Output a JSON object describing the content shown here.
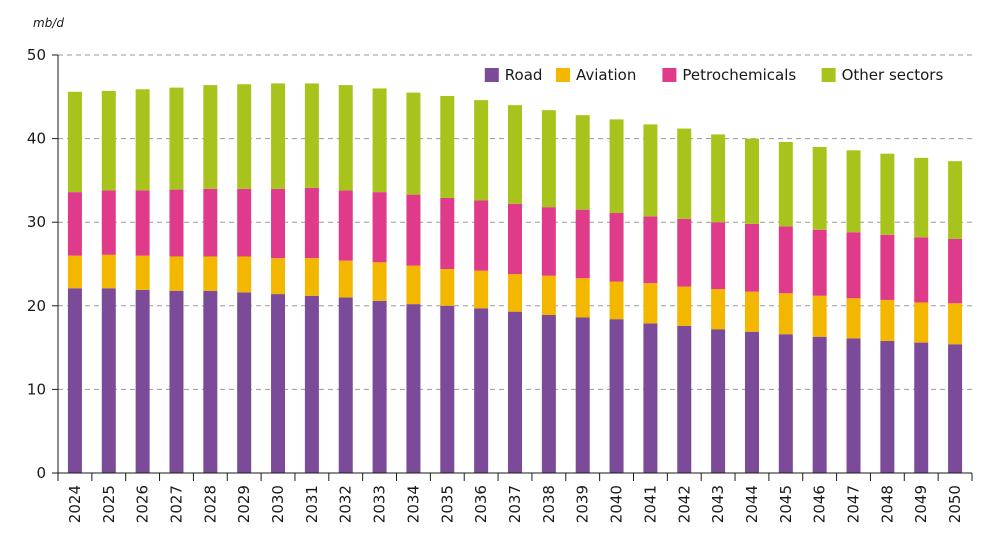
{
  "chart_data": {
    "type": "bar",
    "stacked": true,
    "unit_label": "mb/d",
    "title": "",
    "xlabel": "",
    "ylabel": "",
    "ylim": [
      0,
      50
    ],
    "yticks": [
      0,
      10,
      20,
      30,
      40,
      50
    ],
    "grid": "horizontal-dashed",
    "legend_position": "top-right",
    "categories": [
      "2024",
      "2025",
      "2026",
      "2027",
      "2028",
      "2029",
      "2030",
      "2031",
      "2032",
      "2033",
      "2034",
      "2035",
      "2036",
      "2037",
      "2038",
      "2039",
      "2040",
      "2041",
      "2042",
      "2043",
      "2044",
      "2045",
      "2046",
      "2047",
      "2048",
      "2049",
      "2050"
    ],
    "series": [
      {
        "name": "Road",
        "color": "#7b4a98",
        "values": [
          22.1,
          22.1,
          21.9,
          21.8,
          21.8,
          21.6,
          21.4,
          21.2,
          21.0,
          20.6,
          20.2,
          20.0,
          19.7,
          19.3,
          18.9,
          18.6,
          18.4,
          17.9,
          17.6,
          17.2,
          16.9,
          16.6,
          16.3,
          16.1,
          15.8,
          15.6,
          15.4
        ]
      },
      {
        "name": "Aviation",
        "color": "#f3b700",
        "values": [
          3.9,
          4.0,
          4.1,
          4.1,
          4.1,
          4.3,
          4.3,
          4.5,
          4.4,
          4.6,
          4.6,
          4.4,
          4.5,
          4.5,
          4.7,
          4.7,
          4.5,
          4.8,
          4.7,
          4.8,
          4.8,
          4.9,
          4.9,
          4.8,
          4.9,
          4.8,
          4.9
        ]
      },
      {
        "name": "Petrochemicals",
        "color": "#e03b8b",
        "values": [
          7.6,
          7.7,
          7.8,
          8.0,
          8.1,
          8.1,
          8.3,
          8.4,
          8.4,
          8.4,
          8.5,
          8.5,
          8.4,
          8.4,
          8.2,
          8.2,
          8.2,
          8.0,
          8.1,
          8.0,
          8.1,
          8.0,
          7.9,
          7.9,
          7.8,
          7.8,
          7.7
        ]
      },
      {
        "name": "Other sectors",
        "color": "#a8c41c",
        "values": [
          12.0,
          11.9,
          12.1,
          12.2,
          12.4,
          12.5,
          12.6,
          12.5,
          12.6,
          12.4,
          12.2,
          12.2,
          12.0,
          11.8,
          11.6,
          11.3,
          11.2,
          11.0,
          10.8,
          10.5,
          10.2,
          10.1,
          9.9,
          9.8,
          9.7,
          9.5,
          9.3
        ]
      }
    ]
  }
}
